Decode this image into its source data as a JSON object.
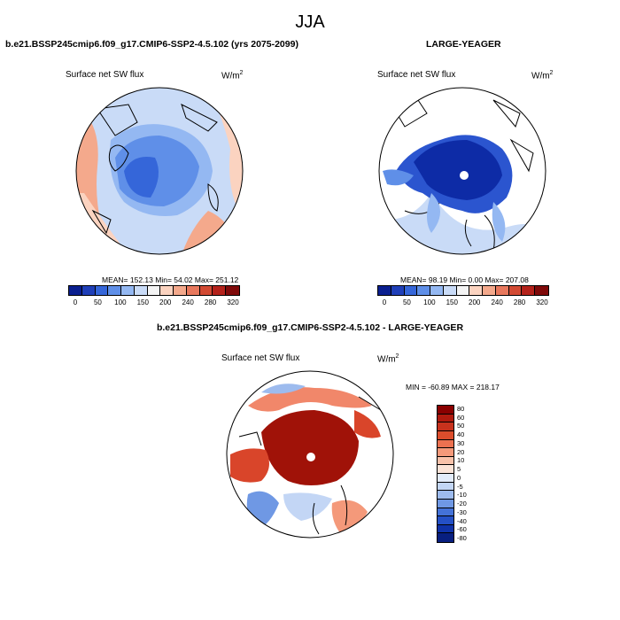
{
  "figure": {
    "season_title": "JJA"
  },
  "panel_left": {
    "title": "b.e21.BSSP245cmip6.f09_g17.CMIP6-SSP2-4.5.102 (yrs 2075-2099)",
    "variable": "Surface net SW flux",
    "units": "W/m",
    "units_exp": "2",
    "stats": "MEAN= 152.13  Min=  54.02  Max= 251.12"
  },
  "panel_right": {
    "title": "LARGE-YEAGER",
    "variable": "Surface net SW flux",
    "units": "W/m",
    "units_exp": "2",
    "stats": "MEAN=  98.19  Min=   0.00  Max= 207.08"
  },
  "panel_diff": {
    "title": "b.e21.BSSP245cmip6.f09_g17.CMIP6-SSP2-4.5.102 - LARGE-YEAGER",
    "variable": "Surface net SW flux",
    "units": "W/m",
    "units_exp": "2",
    "stats": "MIN = -60.89 MAX = 218.17"
  },
  "colorbar_abs": {
    "colors": [
      "#0a1f8f",
      "#1f3fb8",
      "#3566d9",
      "#5f8fe8",
      "#94b8f2",
      "#c9dbf7",
      "#f4f4f4",
      "#fbd3c0",
      "#f4a98c",
      "#e8785d",
      "#d24a33",
      "#b4221b",
      "#7f0a0a"
    ],
    "tick_labels": [
      "0",
      "50",
      "100",
      "150",
      "200",
      "240",
      "280",
      "320"
    ]
  },
  "colorbar_diff": {
    "colors": [
      "#8a0000",
      "#b01a0e",
      "#c8321d",
      "#dc4d2c",
      "#ec7150",
      "#f4997a",
      "#f8c2aa",
      "#fbe4d8",
      "#e3ecfa",
      "#c3d6f5",
      "#9dbbee",
      "#6f98e4",
      "#4472d8",
      "#2450c6",
      "#0f32a8",
      "#081f80"
    ],
    "tick_labels": [
      "80",
      "60",
      "50",
      "40",
      "30",
      "20",
      "10",
      "5",
      "0",
      "-5",
      "-10",
      "-20",
      "-30",
      "-40",
      "-60",
      "-80"
    ]
  },
  "map_colors": {
    "ice_deep": "#0d2ba6",
    "ice_mid": "#2b55cf",
    "ocean_light": "#c9dbf7",
    "ocean_mid": "#94b8f2",
    "land_warm": "#f4a98c",
    "land_light": "#fbd3c0",
    "diff_high": "#a01208",
    "diff_mid": "#d9452a",
    "diff_low": "#f1876a",
    "diff_neg": "#6f98e4"
  }
}
